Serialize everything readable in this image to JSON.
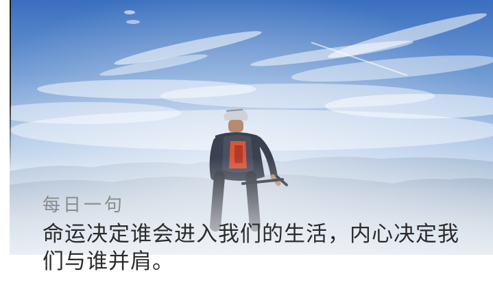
{
  "daily_quote": {
    "heading": "每日一句",
    "text": "命运决定谁会进入我们的生活，内心决定我们与谁并肩。"
  },
  "colors": {
    "sky_top": "#3f76c4",
    "sky_mid": "#8fb3de",
    "haze": "#e6eef7",
    "heading_text": "#8a8a8a",
    "body_text": "#2b2b2b"
  },
  "image": {
    "subject": "cyclist-on-mountain-top"
  }
}
